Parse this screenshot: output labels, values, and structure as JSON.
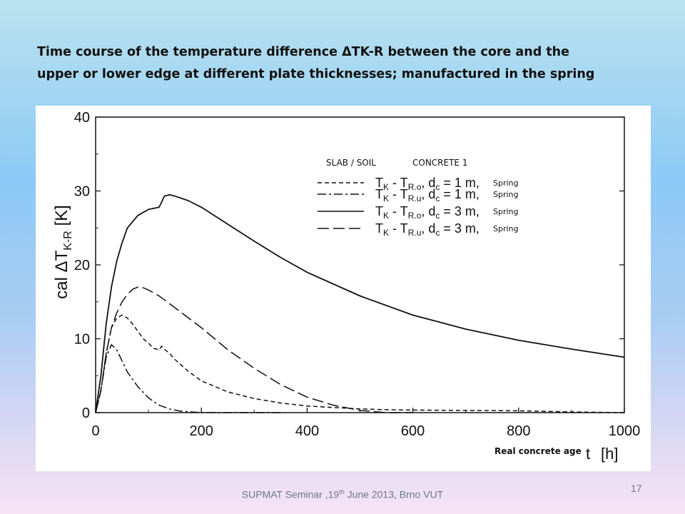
{
  "slide": {
    "title_line1": "Time course of the temperature difference ΔTK-R between the core and the",
    "title_line2": "upper or lower edge at different plate thicknesses; manufactured in the spring",
    "footer_text": "SUPMAT Seminar ,19",
    "footer_sup": "th",
    "footer_rest": " June 2013, Brno VUT",
    "page_number": "17"
  },
  "chart_data": {
    "type": "line",
    "ylabel_prefix": "cal ΔT",
    "ylabel_sub": "K-R",
    "ylabel_unit": "[K]",
    "xlabel": "t",
    "xlabel_unit": "[h]",
    "x_note": "Real concrete age",
    "xlim": [
      0,
      1000
    ],
    "ylim": [
      0,
      40
    ],
    "x_ticks": [
      0,
      200,
      400,
      600,
      800,
      1000
    ],
    "y_ticks": [
      0,
      10,
      20,
      30,
      40
    ],
    "grid": false,
    "legend_position": "top-right",
    "legend_header": [
      "SLAB / SOIL",
      "CONCRETE 1"
    ],
    "series": [
      {
        "name": "TK - TR.o, dc = 1 m, Spring",
        "label_parts": [
          "T",
          "K",
          " - T",
          "R.o",
          ", d",
          "c",
          " = 1 m,"
        ],
        "note": "Spring",
        "dash": "6 4",
        "x": [
          0,
          10,
          20,
          30,
          40,
          50,
          60,
          70,
          80,
          90,
          100,
          110,
          120,
          125,
          130,
          140,
          150,
          175,
          200,
          250,
          300,
          350,
          400,
          450,
          500,
          550,
          600,
          700,
          800,
          900,
          1000
        ],
        "y": [
          0,
          3,
          8,
          11.5,
          12.8,
          13.2,
          12.8,
          12,
          11,
          10,
          9.4,
          8.7,
          8.5,
          9,
          8.6,
          8,
          7.2,
          5.6,
          4.3,
          2.8,
          1.9,
          1.3,
          0.9,
          0.7,
          0.5,
          0.4,
          0.35,
          0.3,
          0.25,
          0.1,
          0
        ]
      },
      {
        "name": "TK - TR.u, dc = 1 m, Spring",
        "label_parts": [
          "T",
          "K",
          " - T",
          "R.u",
          ", d",
          "c",
          " = 1 m,"
        ],
        "note": "Spring",
        "dash": "12 4 3 4",
        "x": [
          0,
          10,
          20,
          30,
          40,
          50,
          60,
          80,
          100,
          120,
          140,
          160,
          200,
          250,
          300,
          350
        ],
        "y": [
          0,
          3,
          7.5,
          9.2,
          8.5,
          7,
          5.5,
          3.5,
          2,
          1,
          0.5,
          0.2,
          0,
          0,
          0,
          0
        ]
      },
      {
        "name": "TK - TR.o, dc = 3 m, Spring",
        "label_parts": [
          "T",
          "K",
          " - T",
          "R.o",
          ", d",
          "c",
          " = 3 m,"
        ],
        "note": "Spring",
        "dash": "",
        "x": [
          0,
          10,
          20,
          30,
          40,
          50,
          60,
          80,
          100,
          120,
          125,
          130,
          140,
          150,
          175,
          200,
          250,
          300,
          350,
          400,
          500,
          600,
          700,
          800,
          900,
          1000
        ],
        "y": [
          0,
          5,
          12,
          17,
          20.5,
          23,
          25,
          26.7,
          27.5,
          27.8,
          28.5,
          29.3,
          29.5,
          29.3,
          28.7,
          27.8,
          25.5,
          23.2,
          21,
          19,
          15.8,
          13.2,
          11.3,
          9.8,
          8.6,
          7.5
        ]
      },
      {
        "name": "TK - TR.u, dc = 3 m, Spring",
        "label_parts": [
          "T",
          "K",
          " - T",
          "R.u",
          ", d",
          "c",
          " = 3 m,"
        ],
        "note": "Spring",
        "dash": "16 6",
        "x": [
          0,
          10,
          20,
          30,
          40,
          50,
          60,
          70,
          80,
          90,
          100,
          120,
          150,
          200,
          250,
          300,
          350,
          400,
          450,
          500,
          550,
          600
        ],
        "y": [
          0,
          3,
          8,
          11.5,
          13.5,
          15,
          16,
          16.7,
          17,
          16.9,
          16.6,
          15.8,
          14.2,
          11.5,
          8.5,
          6,
          3.8,
          2.1,
          1,
          0.3,
          0,
          0
        ]
      }
    ]
  }
}
